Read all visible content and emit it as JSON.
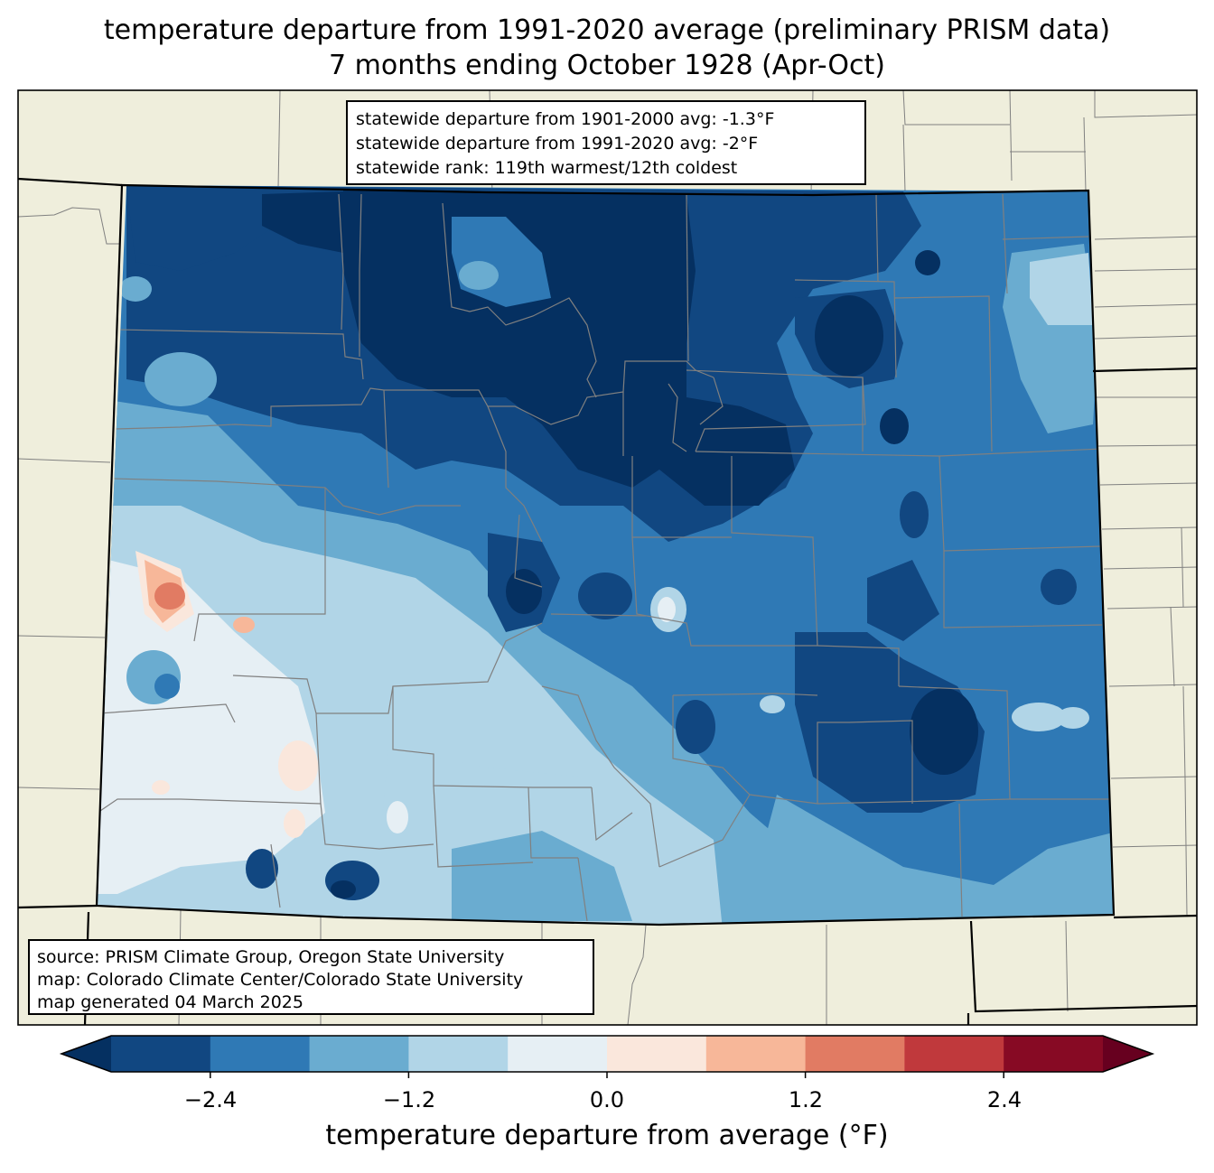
{
  "title": {
    "line1": "temperature departure from 1991-2020 average (preliminary PRISM data)",
    "line2": "7 months ending October 1928 (Apr-Oct)"
  },
  "stats": {
    "line1": "statewide departure from 1901-2000 avg: -1.3°F",
    "line2": "statewide departure from 1991-2020 avg: -2°F",
    "line3": "statewide rank: 119th warmest/12th coldest"
  },
  "source": {
    "line1": "source: PRISM Climate Group, Oregon State University",
    "line2": "map: Colorado Climate Center/Colorado State University",
    "line3": "map generated 04 March 2025"
  },
  "colorbar": {
    "label": "temperature departure from average (°F)",
    "bin_edges": [
      -3.0,
      -2.4,
      -1.8,
      -1.2,
      -0.6,
      0.0,
      0.6,
      1.2,
      1.8,
      2.4,
      3.0
    ],
    "bin_colors": [
      "#114781",
      "#2f79b5",
      "#6aacd0",
      "#b1d5e7",
      "#e6eff4",
      "#fae7dc",
      "#f7b799",
      "#e17b63",
      "#c0393c",
      "#870a24"
    ],
    "under_color": "#053061",
    "over_color": "#67001f",
    "ticks": [
      "−2.4",
      "−1.2",
      "0.0",
      "1.2",
      "2.4"
    ]
  },
  "colors": {
    "land": "#efeedc",
    "county_border": "#808080",
    "state_border": "#000000"
  }
}
